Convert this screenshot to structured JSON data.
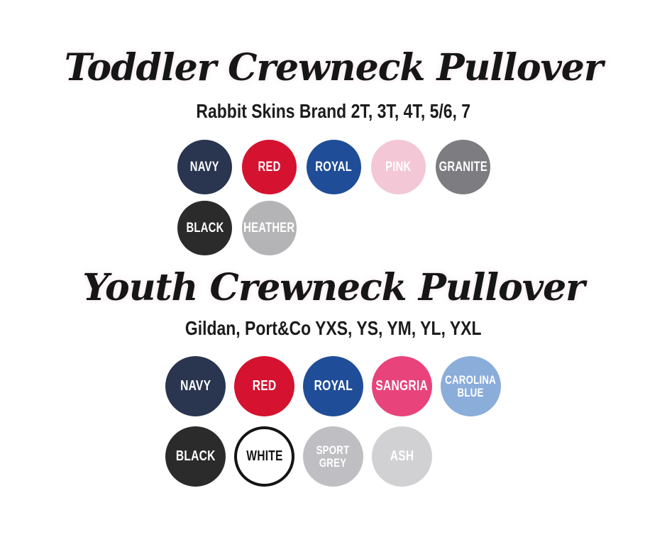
{
  "page": {
    "background": "#ffffff",
    "title_color": "#161616"
  },
  "sections": [
    {
      "title": "Toddler Crewneck Pullover",
      "subtitle": "Rabbit Skins Brand 2T, 3T, 4T, 5/6, 7",
      "rows": [
        [
          {
            "label": "NAVY",
            "bg": "#2a3550",
            "text": "#ffffff"
          },
          {
            "label": "RED",
            "bg": "#d5122f",
            "text": "#ffffff"
          },
          {
            "label": "ROYAL",
            "bg": "#1f4d98",
            "text": "#ffffff"
          },
          {
            "label": "PINK",
            "bg": "#f3c7d5",
            "text": "#ffffff"
          },
          {
            "label": "GRANITE",
            "bg": "#7c7c81",
            "text": "#ffffff"
          }
        ],
        [
          {
            "label": "BLACK",
            "bg": "#2b2b2b",
            "text": "#ffffff"
          },
          {
            "label": "HEATHER",
            "bg": "#b4b4b6",
            "text": "#ffffff"
          }
        ]
      ]
    },
    {
      "title": "Youth Crewneck Pullover",
      "subtitle": "Gildan, Port&Co YXS, YS, YM, YL, YXL",
      "rows": [
        [
          {
            "label": "NAVY",
            "bg": "#2a3550",
            "text": "#ffffff"
          },
          {
            "label": "RED",
            "bg": "#d5122f",
            "text": "#ffffff"
          },
          {
            "label": "ROYAL",
            "bg": "#1f4d98",
            "text": "#ffffff"
          },
          {
            "label": "SANGRIA",
            "bg": "#e8437a",
            "text": "#ffffff"
          },
          {
            "label": "CAROLINA\nBLUE",
            "bg": "#8badda",
            "text": "#ffffff"
          }
        ],
        [
          {
            "label": "BLACK",
            "bg": "#2b2b2b",
            "text": "#ffffff"
          },
          {
            "label": "WHITE",
            "bg": "#ffffff",
            "text": "#141414",
            "border": "#141414"
          },
          {
            "label": "SPORT\nGREY",
            "bg": "#bfbfc3",
            "text": "#ffffff"
          },
          {
            "label": "ASH",
            "bg": "#d1d1d3",
            "text": "#ffffff"
          }
        ]
      ]
    }
  ]
}
